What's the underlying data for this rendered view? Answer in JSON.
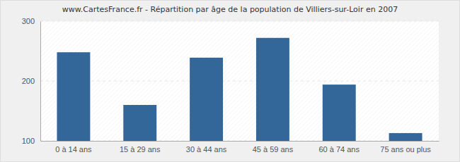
{
  "chart_data": {
    "type": "bar",
    "title": "www.CartesFrance.fr - Répartition par âge de la population de Villiers-sur-Loir en 2007",
    "categories": [
      "0 à 14 ans",
      "15 à 29 ans",
      "30 à 44 ans",
      "45 à 59 ans",
      "60 à 74 ans",
      "75 ans ou plus"
    ],
    "values": [
      248,
      160,
      239,
      272,
      194,
      113
    ],
    "color": "#336699",
    "ylim": [
      100,
      300
    ],
    "yticks": [
      100,
      200,
      300
    ],
    "grid": true
  }
}
